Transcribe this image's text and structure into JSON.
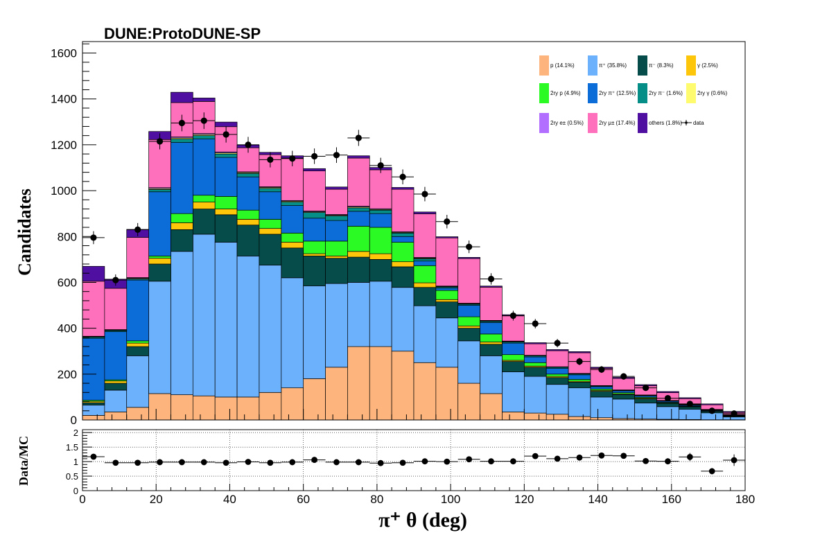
{
  "chart_data": {
    "type": "bar",
    "stacked": true,
    "title": "DUNE:ProtoDUNE-SP",
    "xlabel": "π⁺  θ (deg)",
    "ylabel": "Candidates",
    "ratio_ylabel": "Data/MC",
    "xlim": [
      0,
      180
    ],
    "ylim": [
      0,
      1650
    ],
    "ratio_ylim": [
      0,
      2.1
    ],
    "x_ticks": [
      0,
      20,
      40,
      60,
      80,
      100,
      120,
      140,
      160,
      180
    ],
    "y_ticks": [
      0,
      200,
      400,
      600,
      800,
      1000,
      1200,
      1400,
      1600
    ],
    "ratio_ticks": [
      0,
      0.5,
      1,
      1.5,
      2
    ],
    "ratio_tick_labels": [
      "0",
      "0.5",
      "1",
      "1.5",
      "2"
    ],
    "bin_edges": [
      0,
      6,
      12,
      18,
      24,
      30,
      36,
      42,
      48,
      54,
      60,
      66,
      72,
      78,
      84,
      90,
      96,
      102,
      108,
      114,
      120,
      126,
      132,
      138,
      144,
      150,
      156,
      162,
      168,
      174,
      180
    ],
    "series": [
      {
        "name": "p (14.1%)",
        "color": "#fdb57d",
        "values": [
          20,
          35,
          55,
          115,
          110,
          105,
          100,
          100,
          120,
          140,
          180,
          230,
          320,
          320,
          300,
          250,
          230,
          160,
          115,
          35,
          30,
          25,
          15,
          10,
          6,
          4,
          3,
          2,
          1,
          1
        ]
      },
      {
        "name": "π⁺ (35.8%)",
        "color": "#6bb1fb",
        "values": [
          45,
          95,
          225,
          490,
          625,
          705,
          675,
          615,
          555,
          480,
          405,
          365,
          280,
          285,
          278,
          248,
          215,
          185,
          165,
          175,
          160,
          130,
          125,
          90,
          85,
          70,
          55,
          45,
          30,
          12
        ]
      },
      {
        "name": "π⁻ (8.3%)",
        "color": "#064c4a",
        "values": [
          10,
          30,
          40,
          75,
          95,
          110,
          120,
          135,
          135,
          130,
          130,
          110,
          110,
          95,
          90,
          80,
          70,
          55,
          50,
          45,
          40,
          30,
          25,
          25,
          20,
          18,
          14,
          10,
          7,
          3
        ]
      },
      {
        "name": "γ (2.5%)",
        "color": "#fec60a",
        "values": [
          6,
          10,
          15,
          25,
          30,
          30,
          25,
          25,
          25,
          25,
          10,
          10,
          25,
          25,
          22,
          20,
          10,
          10,
          10,
          5,
          5,
          5,
          4,
          4,
          3,
          3,
          2,
          2,
          1,
          1
        ]
      },
      {
        "name": "2ry p (4.9%)",
        "color": "#2bfa25",
        "values": [
          5,
          5,
          10,
          10,
          40,
          30,
          55,
          40,
          40,
          40,
          55,
          65,
          110,
          115,
          85,
          75,
          40,
          40,
          35,
          25,
          15,
          10,
          8,
          6,
          5,
          4,
          3,
          2,
          1,
          1
        ]
      },
      {
        "name": "2ry π⁺ (12.5%)",
        "color": "#0c6cd8",
        "values": [
          270,
          210,
          265,
          280,
          310,
          245,
          170,
          145,
          120,
          120,
          100,
          90,
          65,
          60,
          25,
          20,
          10,
          50,
          50,
          50,
          25,
          25,
          20,
          10,
          8,
          6,
          5,
          4,
          3,
          2
        ]
      },
      {
        "name": "2ry π⁻ (1.6%)",
        "color": "#058e88",
        "values": [
          5,
          5,
          5,
          10,
          15,
          15,
          15,
          15,
          15,
          15,
          25,
          20,
          15,
          15,
          15,
          10,
          5,
          5,
          5,
          5,
          5,
          5,
          4,
          3,
          2,
          2,
          1,
          1,
          1,
          1
        ]
      },
      {
        "name": "2ry γ (0.6%)",
        "color": "#fffb6e",
        "values": [
          2,
          2,
          3,
          4,
          5,
          5,
          5,
          4,
          4,
          4,
          3,
          3,
          4,
          3,
          3,
          3,
          2,
          2,
          2,
          2,
          1,
          1,
          1,
          1,
          1,
          1,
          1,
          1,
          1,
          1
        ]
      },
      {
        "name": "2ry e± (0.5%)",
        "color": "#b26efe",
        "values": [
          2,
          2,
          3,
          4,
          4,
          4,
          4,
          3,
          3,
          3,
          3,
          3,
          3,
          3,
          3,
          3,
          2,
          2,
          2,
          2,
          1,
          1,
          1,
          1,
          1,
          1,
          1,
          1,
          1,
          1
        ]
      },
      {
        "name": "2ry μ± (17.4%)",
        "color": "#fe6fbc",
        "values": [
          240,
          180,
          175,
          210,
          150,
          140,
          110,
          105,
          140,
          185,
          175,
          110,
          210,
          170,
          185,
          190,
          210,
          195,
          145,
          110,
          50,
          70,
          90,
          75,
          50,
          40,
          34,
          25,
          20,
          10
        ]
      },
      {
        "name": "others (1.8%)",
        "color": "#4f0fa0",
        "values": [
          65,
          40,
          35,
          35,
          45,
          15,
          20,
          12,
          10,
          10,
          10,
          10,
          10,
          10,
          8,
          8,
          5,
          5,
          5,
          5,
          5,
          5,
          5,
          5,
          5,
          5,
          5,
          4,
          4,
          4
        ]
      }
    ],
    "data": {
      "name": "data",
      "values": [
        795,
        610,
        830,
        1215,
        1295,
        1305,
        1245,
        1200,
        1135,
        1140,
        1150,
        1155,
        1230,
        1110,
        1060,
        985,
        865,
        755,
        615,
        455,
        420,
        335,
        255,
        220,
        190,
        140,
        95,
        70,
        40,
        28
      ]
    },
    "ratio": {
      "values": [
        1.17,
        0.96,
        0.96,
        0.98,
        0.98,
        0.98,
        0.96,
        0.99,
        0.96,
        0.98,
        1.06,
        0.98,
        0.98,
        0.95,
        0.96,
        1.01,
        1.0,
        1.08,
        1.01,
        1.01,
        1.19,
        1.1,
        1.14,
        1.21,
        1.2,
        1.02,
        1.01,
        1.16,
        0.67,
        1.05
      ]
    },
    "legend_position": "top-right",
    "grid": "ratio panel only"
  }
}
